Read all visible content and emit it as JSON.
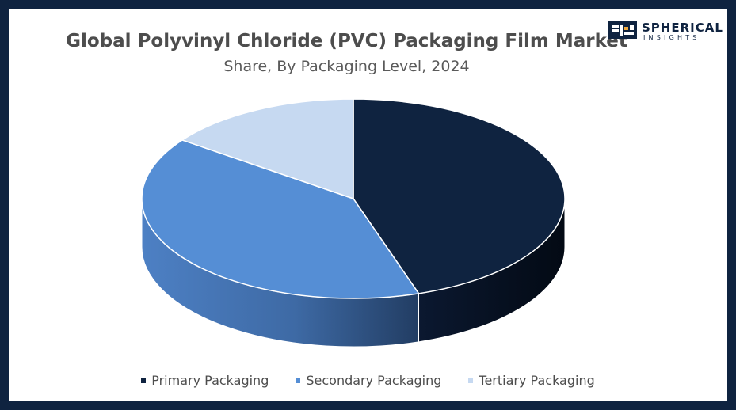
{
  "logo": {
    "name": "SPHERICAL",
    "sub": "INSIGHTS"
  },
  "colors": {
    "frame": "#0f2340",
    "primary": "#0f2340",
    "secondary": "#558ed5",
    "tertiary": "#c6d9f1"
  },
  "chart_data": {
    "type": "pie",
    "style": "3d",
    "title": "Global Polyvinyl Chloride (PVC) Packaging Film Market",
    "subtitle": "Share, By Packaging Level, 2024",
    "legend_position": "bottom",
    "categories": [
      "Primary Packaging",
      "Secondary Packaging",
      "Tertiary Packaging"
    ],
    "values": [
      45,
      40,
      15
    ],
    "unit": "%"
  }
}
